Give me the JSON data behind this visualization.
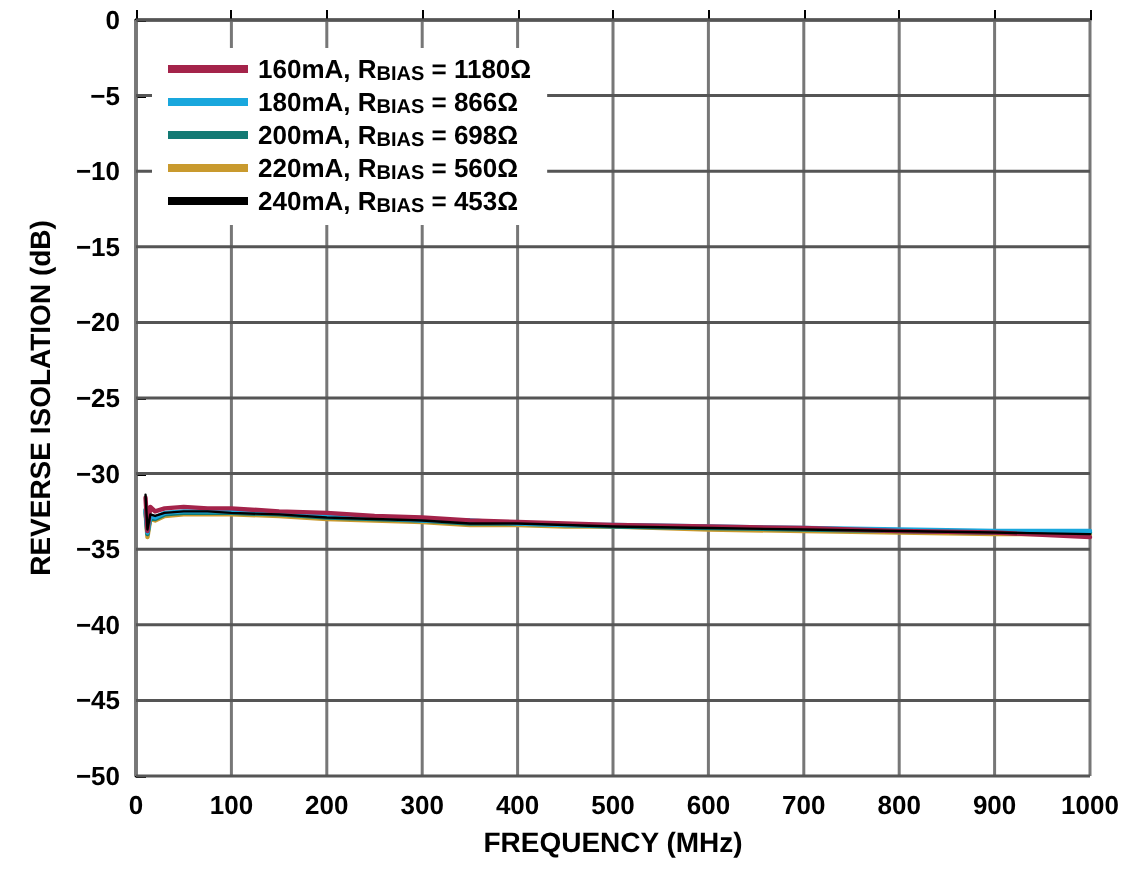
{
  "chart_data": {
    "type": "line",
    "xlabel": "FREQUENCY (MHz)",
    "ylabel": "REVERSE ISOLATION (dB)",
    "xlim": [
      0,
      1000
    ],
    "xticks": [
      0,
      100,
      200,
      300,
      400,
      500,
      600,
      700,
      800,
      900,
      1000
    ],
    "ylim": [
      -50,
      0
    ],
    "yticks": [
      -50,
      -45,
      -40,
      -35,
      -30,
      -25,
      -20,
      -15,
      -10,
      -5,
      0
    ],
    "grid": true,
    "legend": "top left",
    "marker": "none",
    "line_style": "solid",
    "x": [
      10,
      12,
      15,
      20,
      30,
      50,
      75,
      100,
      150,
      200,
      250,
      300,
      350,
      400,
      450,
      500,
      600,
      700,
      800,
      900,
      1000
    ],
    "series": [
      {
        "name": "160mA, R$_{BIAS}$ = 1180Ω",
        "color": "#a4234a",
        "values": [
          -31.6,
          -33.8,
          -32.2,
          -32.5,
          -32.3,
          -32.2,
          -32.3,
          -32.3,
          -32.5,
          -32.6,
          -32.8,
          -32.9,
          -33.1,
          -33.2,
          -33.3,
          -33.4,
          -33.5,
          -33.6,
          -33.8,
          -33.9,
          -34.2
        ]
      },
      {
        "name": "180mA, R$_{BIAS}$ = 866Ω",
        "color": "#19a7dd",
        "values": [
          -32.5,
          -33.9,
          -32.8,
          -32.9,
          -32.6,
          -32.5,
          -32.5,
          -32.5,
          -32.6,
          -32.8,
          -32.9,
          -33.1,
          -33.1,
          -33.3,
          -33.4,
          -33.4,
          -33.5,
          -33.6,
          -33.7,
          -33.8,
          -33.8
        ]
      },
      {
        "name": "200mA, R$_{BIAS}$ = 698Ω",
        "color": "#137a74",
        "values": [
          -32.4,
          -34.0,
          -32.9,
          -33.0,
          -32.7,
          -32.6,
          -32.6,
          -32.6,
          -32.7,
          -32.9,
          -33.0,
          -33.1,
          -33.3,
          -33.3,
          -33.4,
          -33.5,
          -33.6,
          -33.7,
          -33.8,
          -33.9,
          -33.9
        ]
      },
      {
        "name": "220mA, R$_{BIAS}$ = 560Ω",
        "color": "#c99a2e",
        "values": [
          -32.6,
          -34.2,
          -33.0,
          -33.1,
          -32.8,
          -32.7,
          -32.7,
          -32.7,
          -32.8,
          -33.0,
          -33.1,
          -33.2,
          -33.4,
          -33.4,
          -33.5,
          -33.5,
          -33.7,
          -33.8,
          -33.9,
          -34.0,
          -34.0
        ]
      },
      {
        "name": "240mA, R$_{BIAS}$ = 453Ω",
        "color": "#000000",
        "values": [
          -31.4,
          -33.7,
          -32.7,
          -32.8,
          -32.6,
          -32.5,
          -32.5,
          -32.6,
          -32.7,
          -32.9,
          -33.0,
          -33.1,
          -33.3,
          -33.3,
          -33.4,
          -33.5,
          -33.6,
          -33.7,
          -33.8,
          -33.9,
          -34.0
        ]
      }
    ]
  }
}
